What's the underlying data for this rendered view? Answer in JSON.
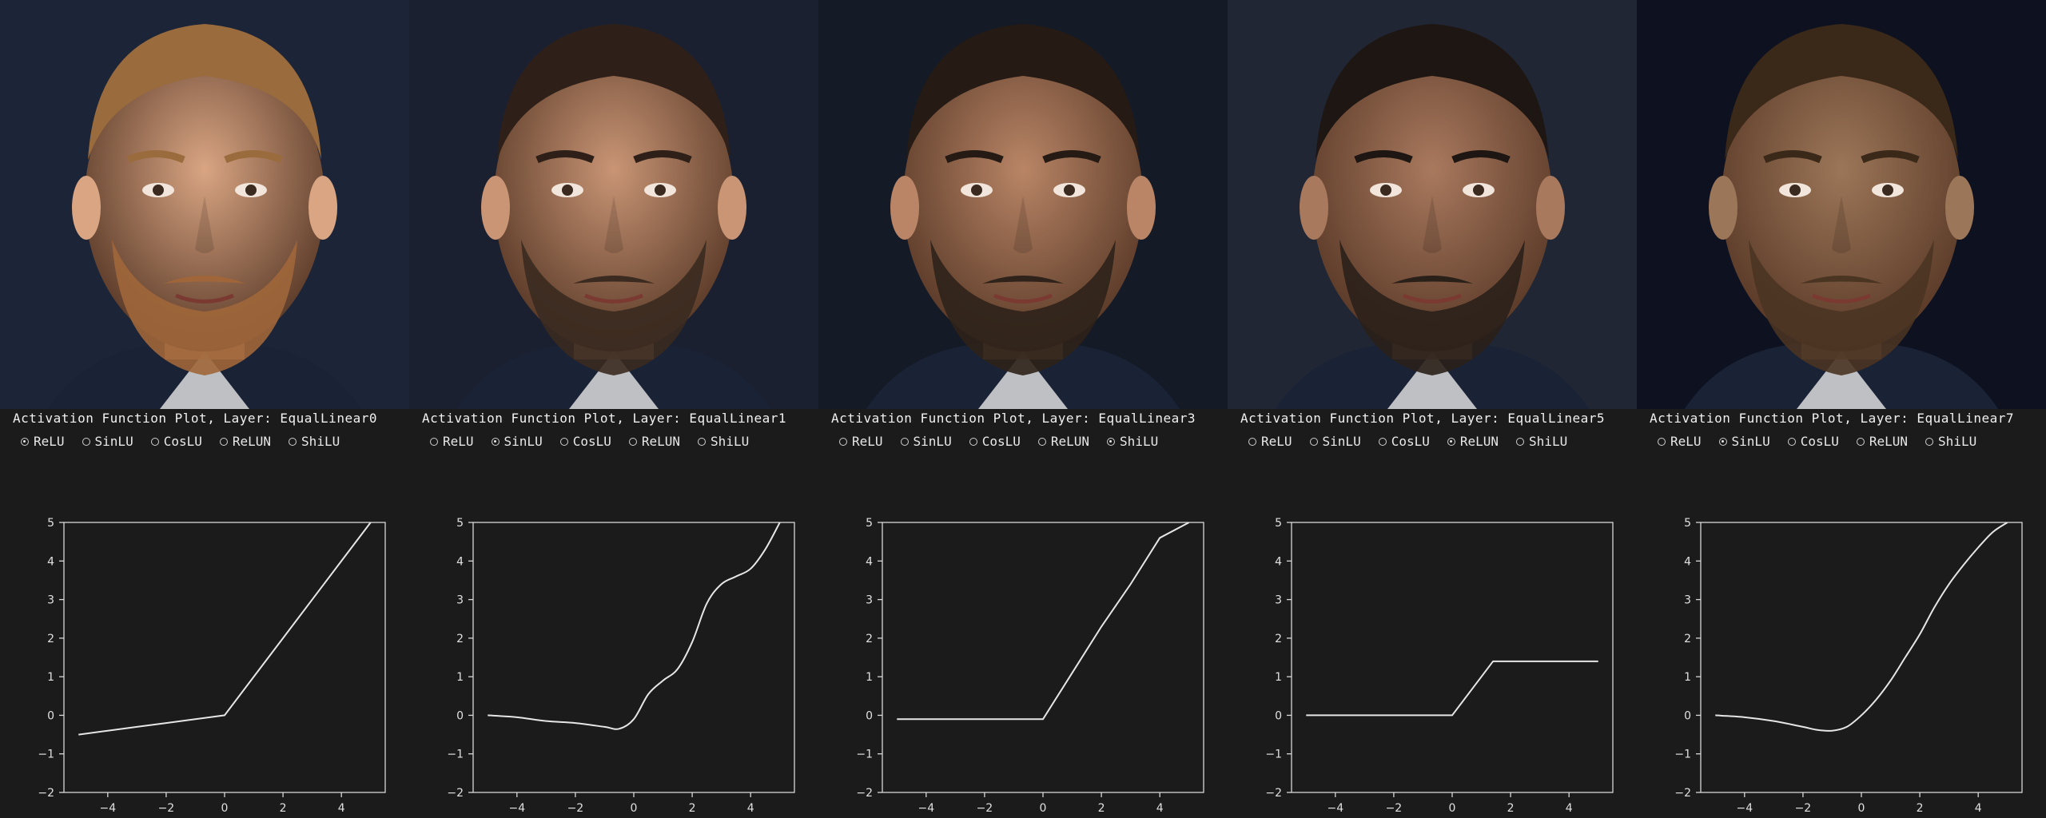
{
  "panels": [
    {
      "title": "Activation Function Plot, Layer: EqualLinear0",
      "selected": 0,
      "skin": "#d9a583",
      "hair": "#9a6b3c",
      "bg": "#1c2438",
      "beard": "#a0663a",
      "curve": "relu"
    },
    {
      "title": "Activation Function Plot, Layer: EqualLinear1",
      "selected": 1,
      "skin": "#c99575",
      "hair": "#2e2018",
      "bg": "#1a2030",
      "beard": "#3a2a20",
      "curve": "sinlu"
    },
    {
      "title": "Activation Function Plot, Layer: EqualLinear3",
      "selected": 4,
      "skin": "#b98566",
      "hair": "#251a14",
      "bg": "#141a26",
      "beard": "#2e221a",
      "curve": "shilu"
    },
    {
      "title": "Activation Function Plot, Layer: EqualLinear5",
      "selected": 3,
      "skin": "#a9795e",
      "hair": "#1e1612",
      "bg": "#202634",
      "beard": "#2a201a",
      "curve": "relun"
    },
    {
      "title": "Activation Function Plot, Layer: EqualLinear7",
      "selected": 1,
      "skin": "#9c7658",
      "hair": "#3a2818",
      "bg": "#0e1220",
      "beard": "#4a3422",
      "curve": "sinlu2"
    }
  ],
  "radio_options": [
    "ReLU",
    "SinLU",
    "CosLU",
    "ReLUN",
    "ShiLU"
  ],
  "chart_data": [
    {
      "type": "line",
      "title": "",
      "xlim": [
        -5.5,
        5.5
      ],
      "ylim": [
        -2,
        5
      ],
      "xticks": [
        -4,
        -2,
        0,
        2,
        4
      ],
      "yticks": [
        -2,
        -1,
        0,
        1,
        2,
        3,
        4,
        5
      ],
      "x": [
        -5,
        -4,
        -3,
        -2,
        -1,
        0,
        1,
        2,
        3,
        4,
        5
      ],
      "series": [
        {
          "values": [
            -0.5,
            -0.4,
            -0.3,
            -0.2,
            -0.1,
            0,
            1,
            2,
            3,
            4,
            5
          ]
        }
      ]
    },
    {
      "type": "line",
      "title": "",
      "xlim": [
        -5.5,
        5.5
      ],
      "ylim": [
        -2,
        5
      ],
      "xticks": [
        -4,
        -2,
        0,
        2,
        4
      ],
      "yticks": [
        -2,
        -1,
        0,
        1,
        2,
        3,
        4,
        5
      ],
      "x": [
        -5,
        -4,
        -3,
        -2,
        -1,
        -0.5,
        0,
        0.5,
        1,
        1.5,
        2,
        2.5,
        3,
        3.5,
        4,
        4.5,
        5
      ],
      "series": [
        {
          "values": [
            0,
            -0.05,
            -0.15,
            -0.2,
            -0.3,
            -0.35,
            -0.1,
            0.55,
            0.9,
            1.2,
            1.9,
            2.9,
            3.4,
            3.6,
            3.8,
            4.3,
            5.0
          ]
        }
      ]
    },
    {
      "type": "line",
      "title": "",
      "xlim": [
        -5.5,
        5.5
      ],
      "ylim": [
        -2,
        5
      ],
      "xticks": [
        -4,
        -2,
        0,
        2,
        4
      ],
      "yticks": [
        -2,
        -1,
        0,
        1,
        2,
        3,
        4,
        5
      ],
      "x": [
        -5,
        -4,
        -3,
        -2,
        -1,
        0,
        1,
        2,
        3,
        4,
        5
      ],
      "series": [
        {
          "values": [
            -0.1,
            -0.1,
            -0.1,
            -0.1,
            -0.1,
            -0.1,
            1.1,
            2.3,
            3.4,
            4.6,
            5.0
          ]
        }
      ]
    },
    {
      "type": "line",
      "title": "",
      "xlim": [
        -5.5,
        5.5
      ],
      "ylim": [
        -2,
        5
      ],
      "xticks": [
        -4,
        -2,
        0,
        2,
        4
      ],
      "yticks": [
        -2,
        -1,
        0,
        1,
        2,
        3,
        4,
        5
      ],
      "x": [
        -5,
        -4,
        -3,
        -2,
        -1,
        0,
        1.4,
        2,
        3,
        4,
        5
      ],
      "series": [
        {
          "values": [
            0,
            0,
            0,
            0,
            0,
            0,
            1.4,
            1.4,
            1.4,
            1.4,
            1.4
          ]
        }
      ]
    },
    {
      "type": "line",
      "title": "",
      "xlim": [
        -5.5,
        5.5
      ],
      "ylim": [
        -2,
        5
      ],
      "xticks": [
        -4,
        -2,
        0,
        2,
        4
      ],
      "yticks": [
        -2,
        -1,
        0,
        1,
        2,
        3,
        4,
        5
      ],
      "x": [
        -5,
        -4,
        -3,
        -2,
        -1.5,
        -1,
        -0.5,
        0,
        0.5,
        1,
        1.5,
        2,
        2.5,
        3,
        3.5,
        4,
        4.5,
        5
      ],
      "series": [
        {
          "values": [
            0,
            -0.05,
            -0.15,
            -0.3,
            -0.38,
            -0.4,
            -0.3,
            0,
            0.4,
            0.9,
            1.5,
            2.1,
            2.8,
            3.4,
            3.9,
            4.35,
            4.75,
            5.0
          ]
        }
      ]
    }
  ]
}
